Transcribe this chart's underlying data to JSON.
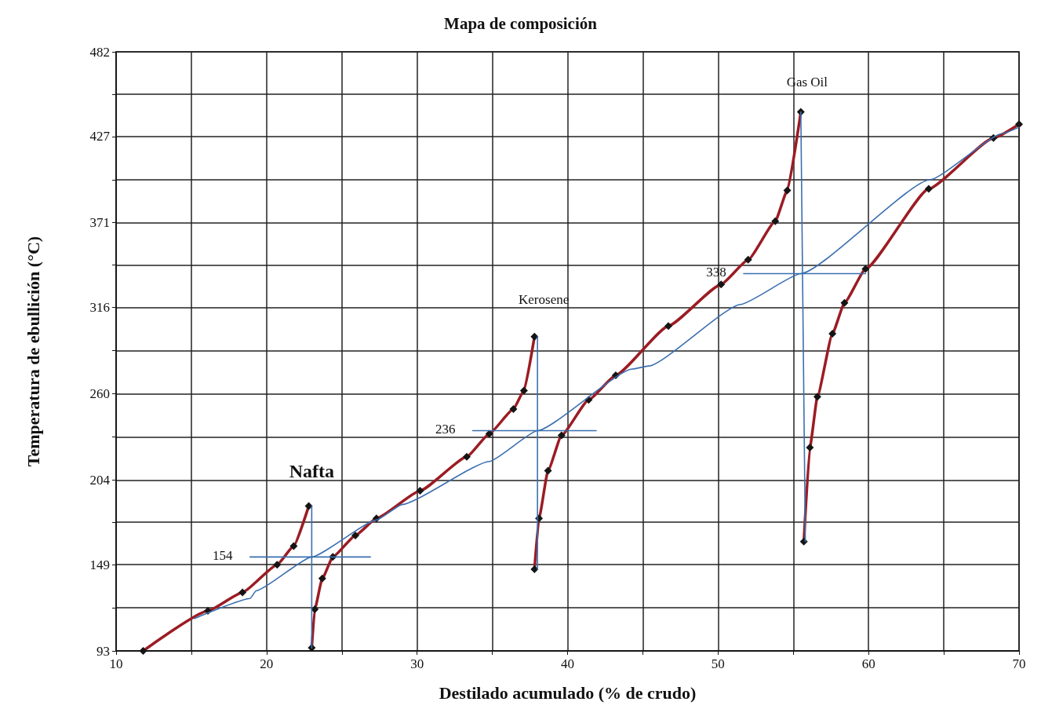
{
  "chart_data": {
    "type": "line",
    "title": "Mapa de composición",
    "xlabel": "Destilado acumulado (% de crudo)",
    "ylabel": "Temperatura de ebullición (°C)",
    "xlim": [
      10,
      70
    ],
    "xticks": [
      10,
      {
        "value": 15,
        "label": null
      },
      20,
      {
        "value": 25,
        "label": null
      },
      30,
      {
        "value": 35,
        "label": null
      },
      40,
      {
        "value": 45,
        "label": null
      },
      50,
      {
        "value": 55,
        "label": null
      },
      60,
      {
        "value": 65,
        "label": null
      },
      70
    ],
    "ylim": [
      93,
      482
    ],
    "yticks": [
      93,
      {
        "value": 121,
        "label": null
      },
      149,
      {
        "value": 176.5,
        "label": null
      },
      204,
      {
        "value": 232,
        "label": null
      },
      260,
      {
        "value": 288,
        "label": null
      },
      316,
      {
        "value": 343.5,
        "label": null
      },
      371,
      {
        "value": 399,
        "label": null
      },
      427,
      {
        "value": 454.5,
        "label": null
      },
      482
    ],
    "grid": true,
    "series": [
      {
        "color": "#9b1c24",
        "marker": "diamond",
        "x": [
          11.8,
          16.1,
          18.4,
          20.7,
          21.8,
          22.8
        ],
        "values": [
          93,
          119,
          131,
          149,
          161,
          187
        ]
      },
      {
        "color": "#9b1c24",
        "marker": "diamond",
        "x": [
          23.0,
          23.2,
          23.7,
          24.4,
          25.9,
          27.3,
          30.2,
          33.3,
          34.8,
          36.4,
          37.1,
          37.8
        ],
        "values": [
          95,
          120,
          140,
          154,
          168,
          179,
          197,
          219,
          234,
          250,
          262,
          297
        ]
      },
      {
        "color": "#9b1c24",
        "marker": "diamond",
        "x": [
          37.8,
          38.1,
          38.7,
          39.6,
          41.4,
          43.2,
          46.7,
          50.2,
          52.0,
          53.8,
          54.6,
          55.5
        ],
        "values": [
          146,
          179,
          210,
          233,
          256,
          272,
          304,
          331,
          347,
          372,
          392,
          443
        ]
      },
      {
        "color": "#9b1c24",
        "marker": "diamond",
        "x": [
          55.7,
          56.1,
          56.6,
          57.6,
          58.4,
          59.8,
          64.0,
          68.3,
          70
        ],
        "values": [
          164,
          225,
          258,
          299,
          319,
          341,
          393,
          426,
          435
        ]
      },
      {
        "color": "#3a6fb0",
        "marker": "none",
        "x": [
          15.2,
          18.9,
          19.3,
          23.0,
          27.3,
          29.0,
          34.8,
          38.0,
          44.3,
          45.4,
          51.5,
          55.5,
          64.1,
          68.9,
          70
        ],
        "values": [
          114,
          127,
          132,
          154,
          178,
          188,
          216,
          236,
          276,
          278,
          318,
          338,
          399,
          429,
          433
        ]
      },
      {
        "color": "#3a6fb0",
        "marker": "none",
        "x": [
          18.9,
          26.9
        ],
        "values": [
          154,
          154
        ]
      },
      {
        "color": "#3a6fb0",
        "marker": "none",
        "x": [
          23.0,
          23.0
        ],
        "values": [
          95,
          187
        ]
      },
      {
        "color": "#3a6fb0",
        "marker": "none",
        "x": [
          33.7,
          41.9
        ],
        "values": [
          236,
          236
        ]
      },
      {
        "color": "#3a6fb0",
        "marker": "none",
        "x": [
          38.0,
          38.0
        ],
        "values": [
          146,
          297
        ]
      },
      {
        "color": "#3a6fb0",
        "marker": "none",
        "x": [
          51.7,
          59.8
        ],
        "values": [
          338,
          338
        ]
      },
      {
        "color": "#3a6fb0",
        "marker": "none",
        "x": [
          55.5,
          55.8
        ],
        "values": [
          443,
          164
        ]
      }
    ],
    "annotations": [
      "Nafta",
      "Kerosene",
      "Gas Oil",
      "154",
      "236",
      "338"
    ]
  }
}
